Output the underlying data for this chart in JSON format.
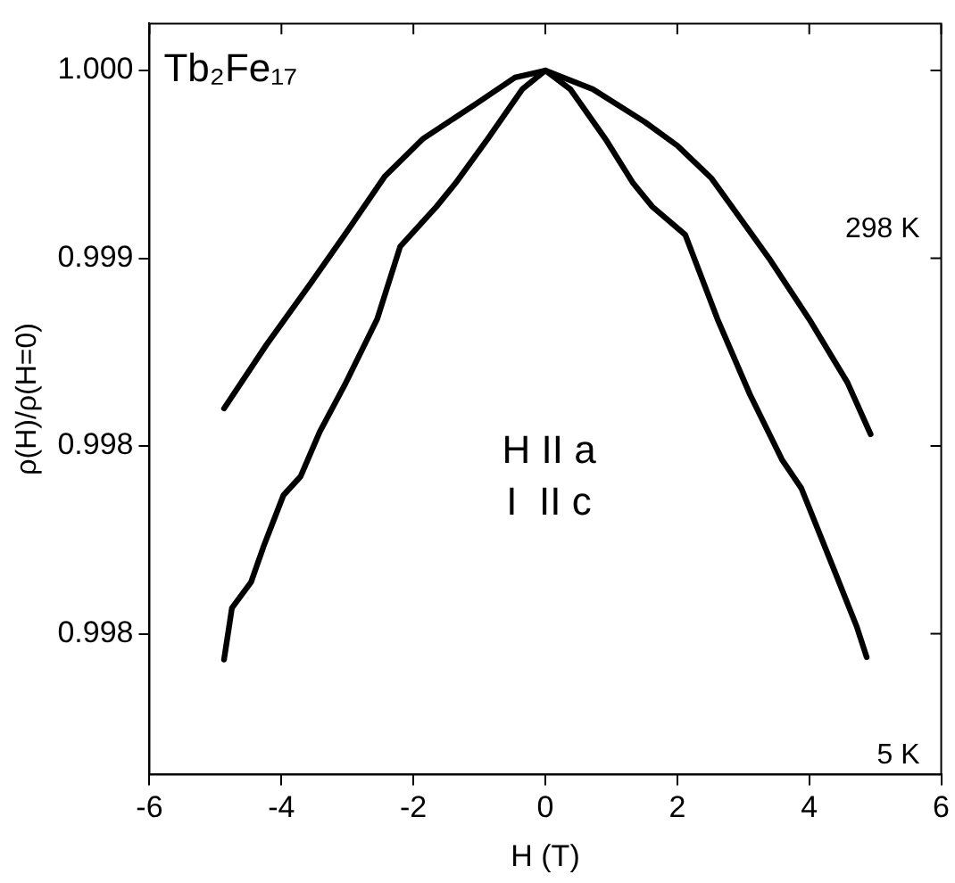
{
  "chart_data": {
    "type": "line",
    "xlabel": "H (T)",
    "ylabel": "ρ(H)/ρ(H=0)",
    "xlim": [
      -6,
      6
    ],
    "xticks": [
      -6,
      -4,
      -2,
      0,
      2,
      4,
      6
    ],
    "ylim": [
      0.997,
      1.0002
    ],
    "yticks": [
      {
        "value": 0.9976,
        "label": "0.998"
      },
      {
        "value": 0.9984,
        "label": "0.998"
      },
      {
        "value": 0.9992,
        "label": "0.999"
      },
      {
        "value": 1.0,
        "label": "1.000"
      }
    ],
    "grid": false,
    "legend": false,
    "marker": "none",
    "line_style": "solid",
    "annotations": [
      "Tb₂Fe₁₇",
      "H II a",
      "I  II c"
    ],
    "series": [
      {
        "name": "298 K",
        "color": "#000000",
        "x": [
          -4.87,
          -4.23,
          -3.54,
          -3.04,
          -2.43,
          -1.85,
          -1.04,
          -0.46,
          0,
          0.72,
          1.51,
          2.0,
          2.52,
          3.39,
          4.0,
          4.58,
          4.93
        ],
        "values": [
          0.99856,
          0.99883,
          0.9991,
          0.9993,
          0.99955,
          0.99971,
          0.99986,
          0.99997,
          1.0,
          0.99992,
          0.99978,
          0.99968,
          0.99954,
          0.9992,
          0.99894,
          0.99867,
          0.99845
        ]
      },
      {
        "name": "5 K",
        "color": "#000000",
        "x": [
          -4.87,
          -4.75,
          -4.46,
          -4.26,
          -3.97,
          -3.71,
          -3.42,
          -3.04,
          -2.55,
          -2.2,
          -1.65,
          -1.36,
          -0.87,
          -0.35,
          0,
          0.38,
          0.93,
          1.33,
          1.62,
          2.12,
          2.61,
          3.1,
          3.59,
          3.88,
          4.38,
          4.72,
          4.87
        ],
        "values": [
          0.99749,
          0.99771,
          0.99782,
          0.99798,
          0.99819,
          0.99827,
          0.99846,
          0.99866,
          0.99894,
          0.99925,
          0.99942,
          0.99952,
          0.99971,
          0.99992,
          1.0,
          0.99992,
          0.9997,
          0.99952,
          0.99942,
          0.9993,
          0.99894,
          0.99862,
          0.99834,
          0.99822,
          0.99787,
          0.99763,
          0.9975
        ]
      }
    ]
  }
}
